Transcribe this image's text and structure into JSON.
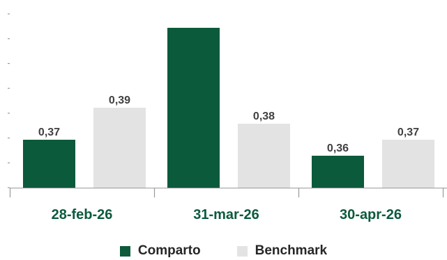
{
  "colors": {
    "comparto": "#0b5a3c",
    "benchmark": "#e3e3e3",
    "axis": "#9a9a9a",
    "category_text": "#0b5a3c",
    "value_text": "#404040"
  },
  "chart_data": {
    "type": "bar",
    "categories": [
      "28-feb-26",
      "31-mar-26",
      "30-apr-26"
    ],
    "series": [
      {
        "name": "Comparto",
        "values": [
          0.37,
          0.44,
          0.36
        ],
        "labels": [
          "0,37",
          "",
          "0,36"
        ]
      },
      {
        "name": "Benchmark",
        "values": [
          0.39,
          0.38,
          0.37
        ],
        "labels": [
          "0,39",
          "0,38",
          "0,37"
        ]
      }
    ],
    "ylim": [
      0.34,
      0.44
    ],
    "grid": false,
    "legend_position": "bottom"
  },
  "legend": {
    "comparto": "Comparto",
    "benchmark": "Benchmark"
  }
}
